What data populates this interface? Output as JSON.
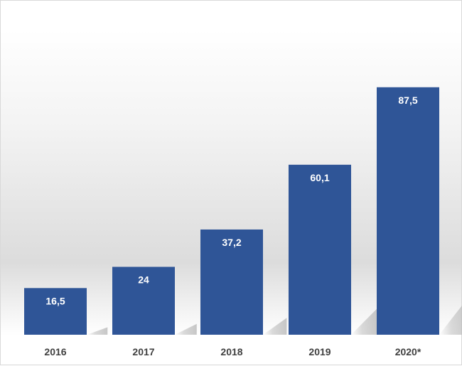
{
  "chart_data": {
    "type": "bar",
    "categories": [
      "2016",
      "2017",
      "2018",
      "2019",
      "2020*"
    ],
    "values": [
      16.5,
      24,
      37.2,
      60.1,
      87.5
    ],
    "value_labels": [
      "16,5",
      "24",
      "37,2",
      "60,1",
      "87,5"
    ],
    "title": "",
    "xlabel": "",
    "ylabel": "",
    "ylim": [
      0,
      100
    ],
    "grid": false,
    "legend": "none",
    "bar_color": "#2f5597",
    "label_color": "#ffffff",
    "tick_color": "#404040"
  }
}
